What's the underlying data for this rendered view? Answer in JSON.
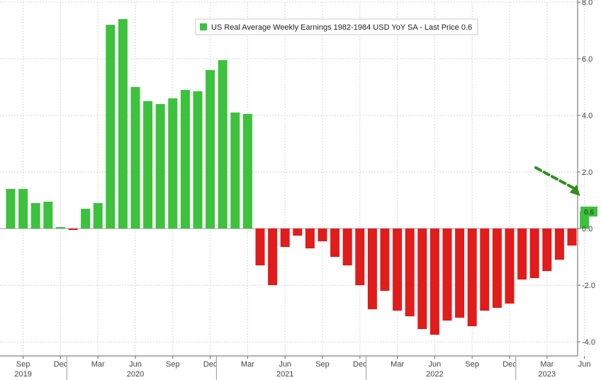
{
  "chart_data": {
    "type": "bar",
    "legend": {
      "label": "US Real Average Weekly Earnings 1982-1984 USD YoY SA - Last Price 0.6",
      "placement": "top-center"
    },
    "last_price_label": "0.6",
    "ylim": [
      -4.5,
      8.0
    ],
    "yticks": [
      "-4.0",
      "-2.0",
      "0.0",
      "2.0",
      "4.0",
      "6.0",
      "8.0"
    ],
    "ytick_values": [
      -4,
      -2,
      0,
      2,
      4,
      6,
      8
    ],
    "y_axis_side": "right",
    "grid": true,
    "positive_color": "#3cc23c",
    "negative_color": "#e21b1b",
    "arrow_color": "#2f8f1e",
    "months": [
      "2019-08",
      "2019-09",
      "2019-10",
      "2019-11",
      "2019-12",
      "2020-01",
      "2020-02",
      "2020-03",
      "2020-04",
      "2020-05",
      "2020-06",
      "2020-07",
      "2020-08",
      "2020-09",
      "2020-10",
      "2020-11",
      "2020-12",
      "2021-01",
      "2021-02",
      "2021-03",
      "2021-04",
      "2021-05",
      "2021-06",
      "2021-07",
      "2021-08",
      "2021-09",
      "2021-10",
      "2021-11",
      "2021-12",
      "2022-01",
      "2022-02",
      "2022-03",
      "2022-04",
      "2022-05",
      "2022-06",
      "2022-07",
      "2022-08",
      "2022-09",
      "2022-10",
      "2022-11",
      "2022-12",
      "2023-01",
      "2023-02",
      "2023-03",
      "2023-04",
      "2023-05",
      "2023-06"
    ],
    "values": [
      1.4,
      1.4,
      0.9,
      0.95,
      0.05,
      -0.05,
      0.7,
      0.9,
      7.2,
      7.4,
      5.0,
      4.5,
      4.4,
      4.6,
      4.9,
      4.85,
      5.6,
      5.95,
      4.1,
      4.05,
      -1.3,
      -2.0,
      -0.65,
      -0.25,
      -0.7,
      -0.45,
      -1.0,
      -1.3,
      -2.0,
      -2.85,
      -2.2,
      -2.9,
      -3.1,
      -3.55,
      -3.75,
      -3.25,
      -3.15,
      -3.45,
      -2.9,
      -2.8,
      -2.65,
      -1.8,
      -1.75,
      -1.5,
      -1.1,
      -0.6,
      0.6
    ],
    "x_month_labels": [
      {
        "month": "2019-09",
        "label": "Sep"
      },
      {
        "month": "2019-12",
        "label": "Dec"
      },
      {
        "month": "2020-03",
        "label": "Mar"
      },
      {
        "month": "2020-06",
        "label": "Jun"
      },
      {
        "month": "2020-09",
        "label": "Sep"
      },
      {
        "month": "2020-12",
        "label": "Dec"
      },
      {
        "month": "2021-03",
        "label": "Mar"
      },
      {
        "month": "2021-06",
        "label": "Jun"
      },
      {
        "month": "2021-09",
        "label": "Sep"
      },
      {
        "month": "2021-12",
        "label": "Dec"
      },
      {
        "month": "2022-03",
        "label": "Mar"
      },
      {
        "month": "2022-06",
        "label": "Jun"
      },
      {
        "month": "2022-09",
        "label": "Sep"
      },
      {
        "month": "2022-12",
        "label": "Dec"
      },
      {
        "month": "2023-03",
        "label": "Mar"
      },
      {
        "month": "2023-06",
        "label": "Jun"
      }
    ],
    "x_year_labels": [
      {
        "month": "2019-09",
        "label": "2019"
      },
      {
        "month": "2020-06",
        "label": "2020"
      },
      {
        "month": "2021-06",
        "label": "2021"
      },
      {
        "month": "2022-06",
        "label": "2022"
      },
      {
        "month": "2023-03",
        "label": "2023"
      }
    ],
    "year_boundaries": [
      "2020-01",
      "2021-01",
      "2022-01",
      "2023-01"
    ]
  }
}
